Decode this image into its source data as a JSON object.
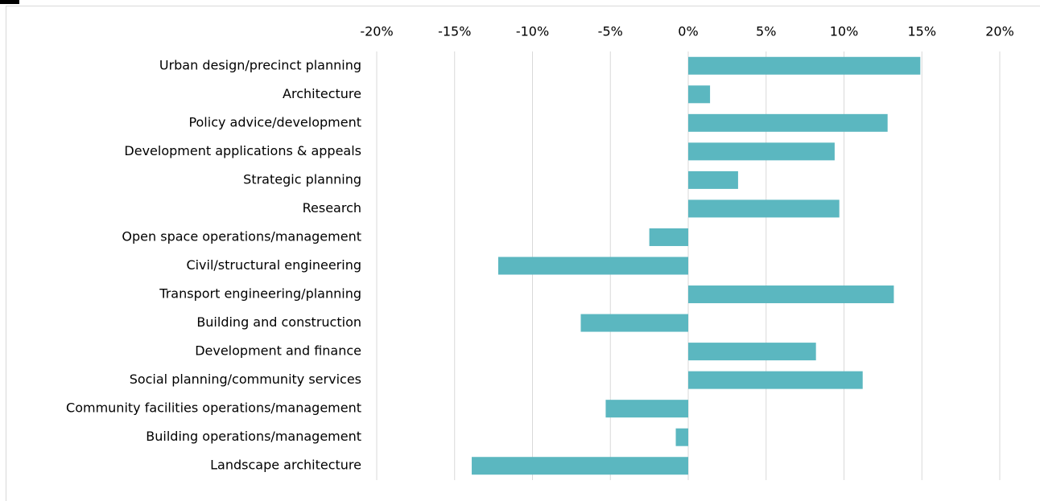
{
  "chart_data": {
    "type": "bar",
    "orientation": "horizontal",
    "categories": [
      "Urban design/precinct planning",
      "Architecture",
      "Policy advice/development",
      "Development applications & appeals",
      "Strategic planning",
      "Research",
      "Open space operations/management",
      "Civil/structural engineering",
      "Transport engineering/planning",
      "Building and construction",
      "Development and finance",
      "Social planning/community services",
      "Community facilities operations/management",
      "Building operations/management",
      "Landscape architecture"
    ],
    "values": [
      14.9,
      1.4,
      12.8,
      9.4,
      3.2,
      9.7,
      -2.5,
      -12.2,
      13.2,
      -6.9,
      8.2,
      11.2,
      -5.3,
      -0.8,
      -13.9
    ],
    "color": "#5bb7c0",
    "xlim": [
      -20,
      20
    ],
    "xticks": [
      {
        "value": -20,
        "label": "-20%"
      },
      {
        "value": -15,
        "label": "-15%"
      },
      {
        "value": -10,
        "label": "-10%"
      },
      {
        "value": -5,
        "label": "-5%"
      },
      {
        "value": 0,
        "label": "0%"
      },
      {
        "value": 5,
        "label": "5%"
      },
      {
        "value": 10,
        "label": "10%"
      },
      {
        "value": 15,
        "label": "15%"
      },
      {
        "value": 20,
        "label": "20%"
      }
    ],
    "grid": true
  }
}
